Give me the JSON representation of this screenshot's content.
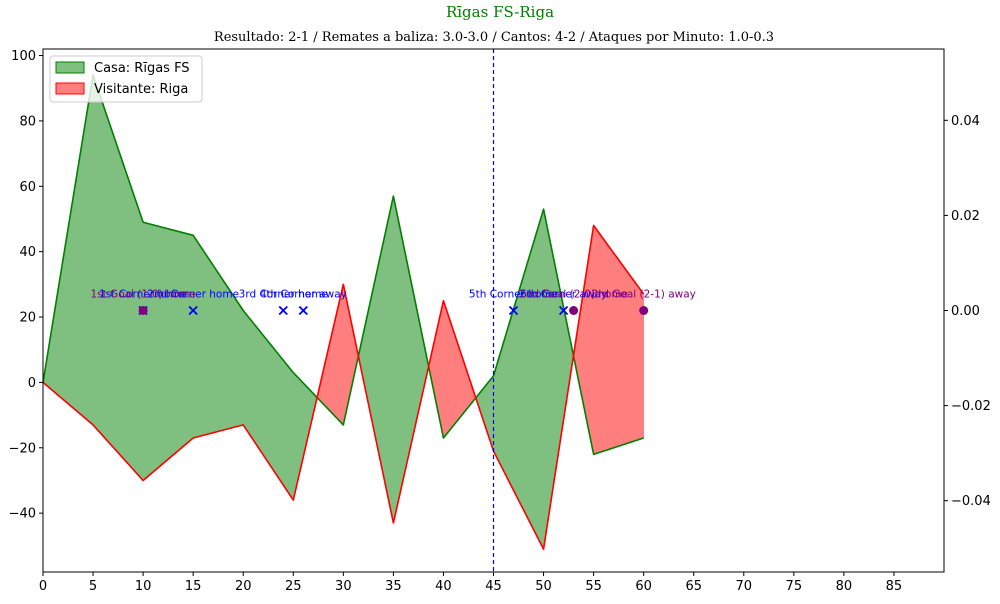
{
  "chart_data": {
    "type": "area",
    "title": "Rīgas FS-Riga",
    "subtitle": "Resultado: 2-1 / Remates a baliza: 3.0-3.0 / Cantos: 4-2 / Ataques por Minuto: 1.0-0.3",
    "xlabel": "",
    "ylabel": "",
    "xlim": [
      0,
      90
    ],
    "ylim": [
      -58,
      102
    ],
    "y2lim": [
      -0.055,
      0.055
    ],
    "x_ticks": [
      0,
      5,
      10,
      15,
      20,
      25,
      30,
      35,
      40,
      45,
      50,
      55,
      60,
      65,
      70,
      75,
      80,
      85
    ],
    "y_ticks": [
      -40,
      -20,
      0,
      20,
      40,
      60,
      80,
      100
    ],
    "y2_ticks": [
      -0.04,
      -0.02,
      0.0,
      0.02,
      0.04
    ],
    "y2_tick_labels": [
      "−0.04",
      "−0.02",
      "0.00",
      "0.02",
      "0.04"
    ],
    "x": [
      0,
      5,
      10,
      15,
      20,
      25,
      30,
      35,
      40,
      45,
      50,
      55,
      60
    ],
    "series": [
      {
        "name": "Casa: Rīgas FS",
        "values": [
          0,
          94,
          49,
          45,
          22,
          3,
          -13,
          57,
          -17,
          2,
          53,
          -22,
          -17
        ],
        "line_color": "#008000",
        "fill_color": "#7fbf7f"
      },
      {
        "name": "Visitante: Riga",
        "values": [
          0,
          -13,
          -30,
          -17,
          -13,
          -36,
          30,
          -43,
          25,
          -21,
          -51,
          48,
          27
        ],
        "line_color": "#ff0000",
        "fill_color": "#ff7f7f"
      }
    ],
    "halftime_line": {
      "x": 45,
      "color": "#0000ff"
    },
    "events": [
      {
        "x": 10,
        "type": "corner",
        "label": "1st Corner home"
      },
      {
        "x": 15,
        "type": "corner",
        "label": "2nd Corner home"
      },
      {
        "x": 24,
        "type": "corner",
        "label": "3rd Corner home"
      },
      {
        "x": 26,
        "type": "corner",
        "label": "4th Corner away"
      },
      {
        "x": 47,
        "type": "corner",
        "label": "5th Corner home"
      },
      {
        "x": 52,
        "type": "corner",
        "label": "6th Corner away"
      },
      {
        "x": 10,
        "type": "goal",
        "label": "1st Goal (1-0) home"
      },
      {
        "x": 53,
        "type": "goal",
        "label": "2nd Goal (2-0) home"
      },
      {
        "x": 60,
        "type": "goal",
        "label": "3rd Goal (2-1) away"
      }
    ],
    "event_y": 22,
    "corner_color": "#0000ff",
    "goal_color": "#800080",
    "legend_position": "upper-left",
    "grid": false
  }
}
